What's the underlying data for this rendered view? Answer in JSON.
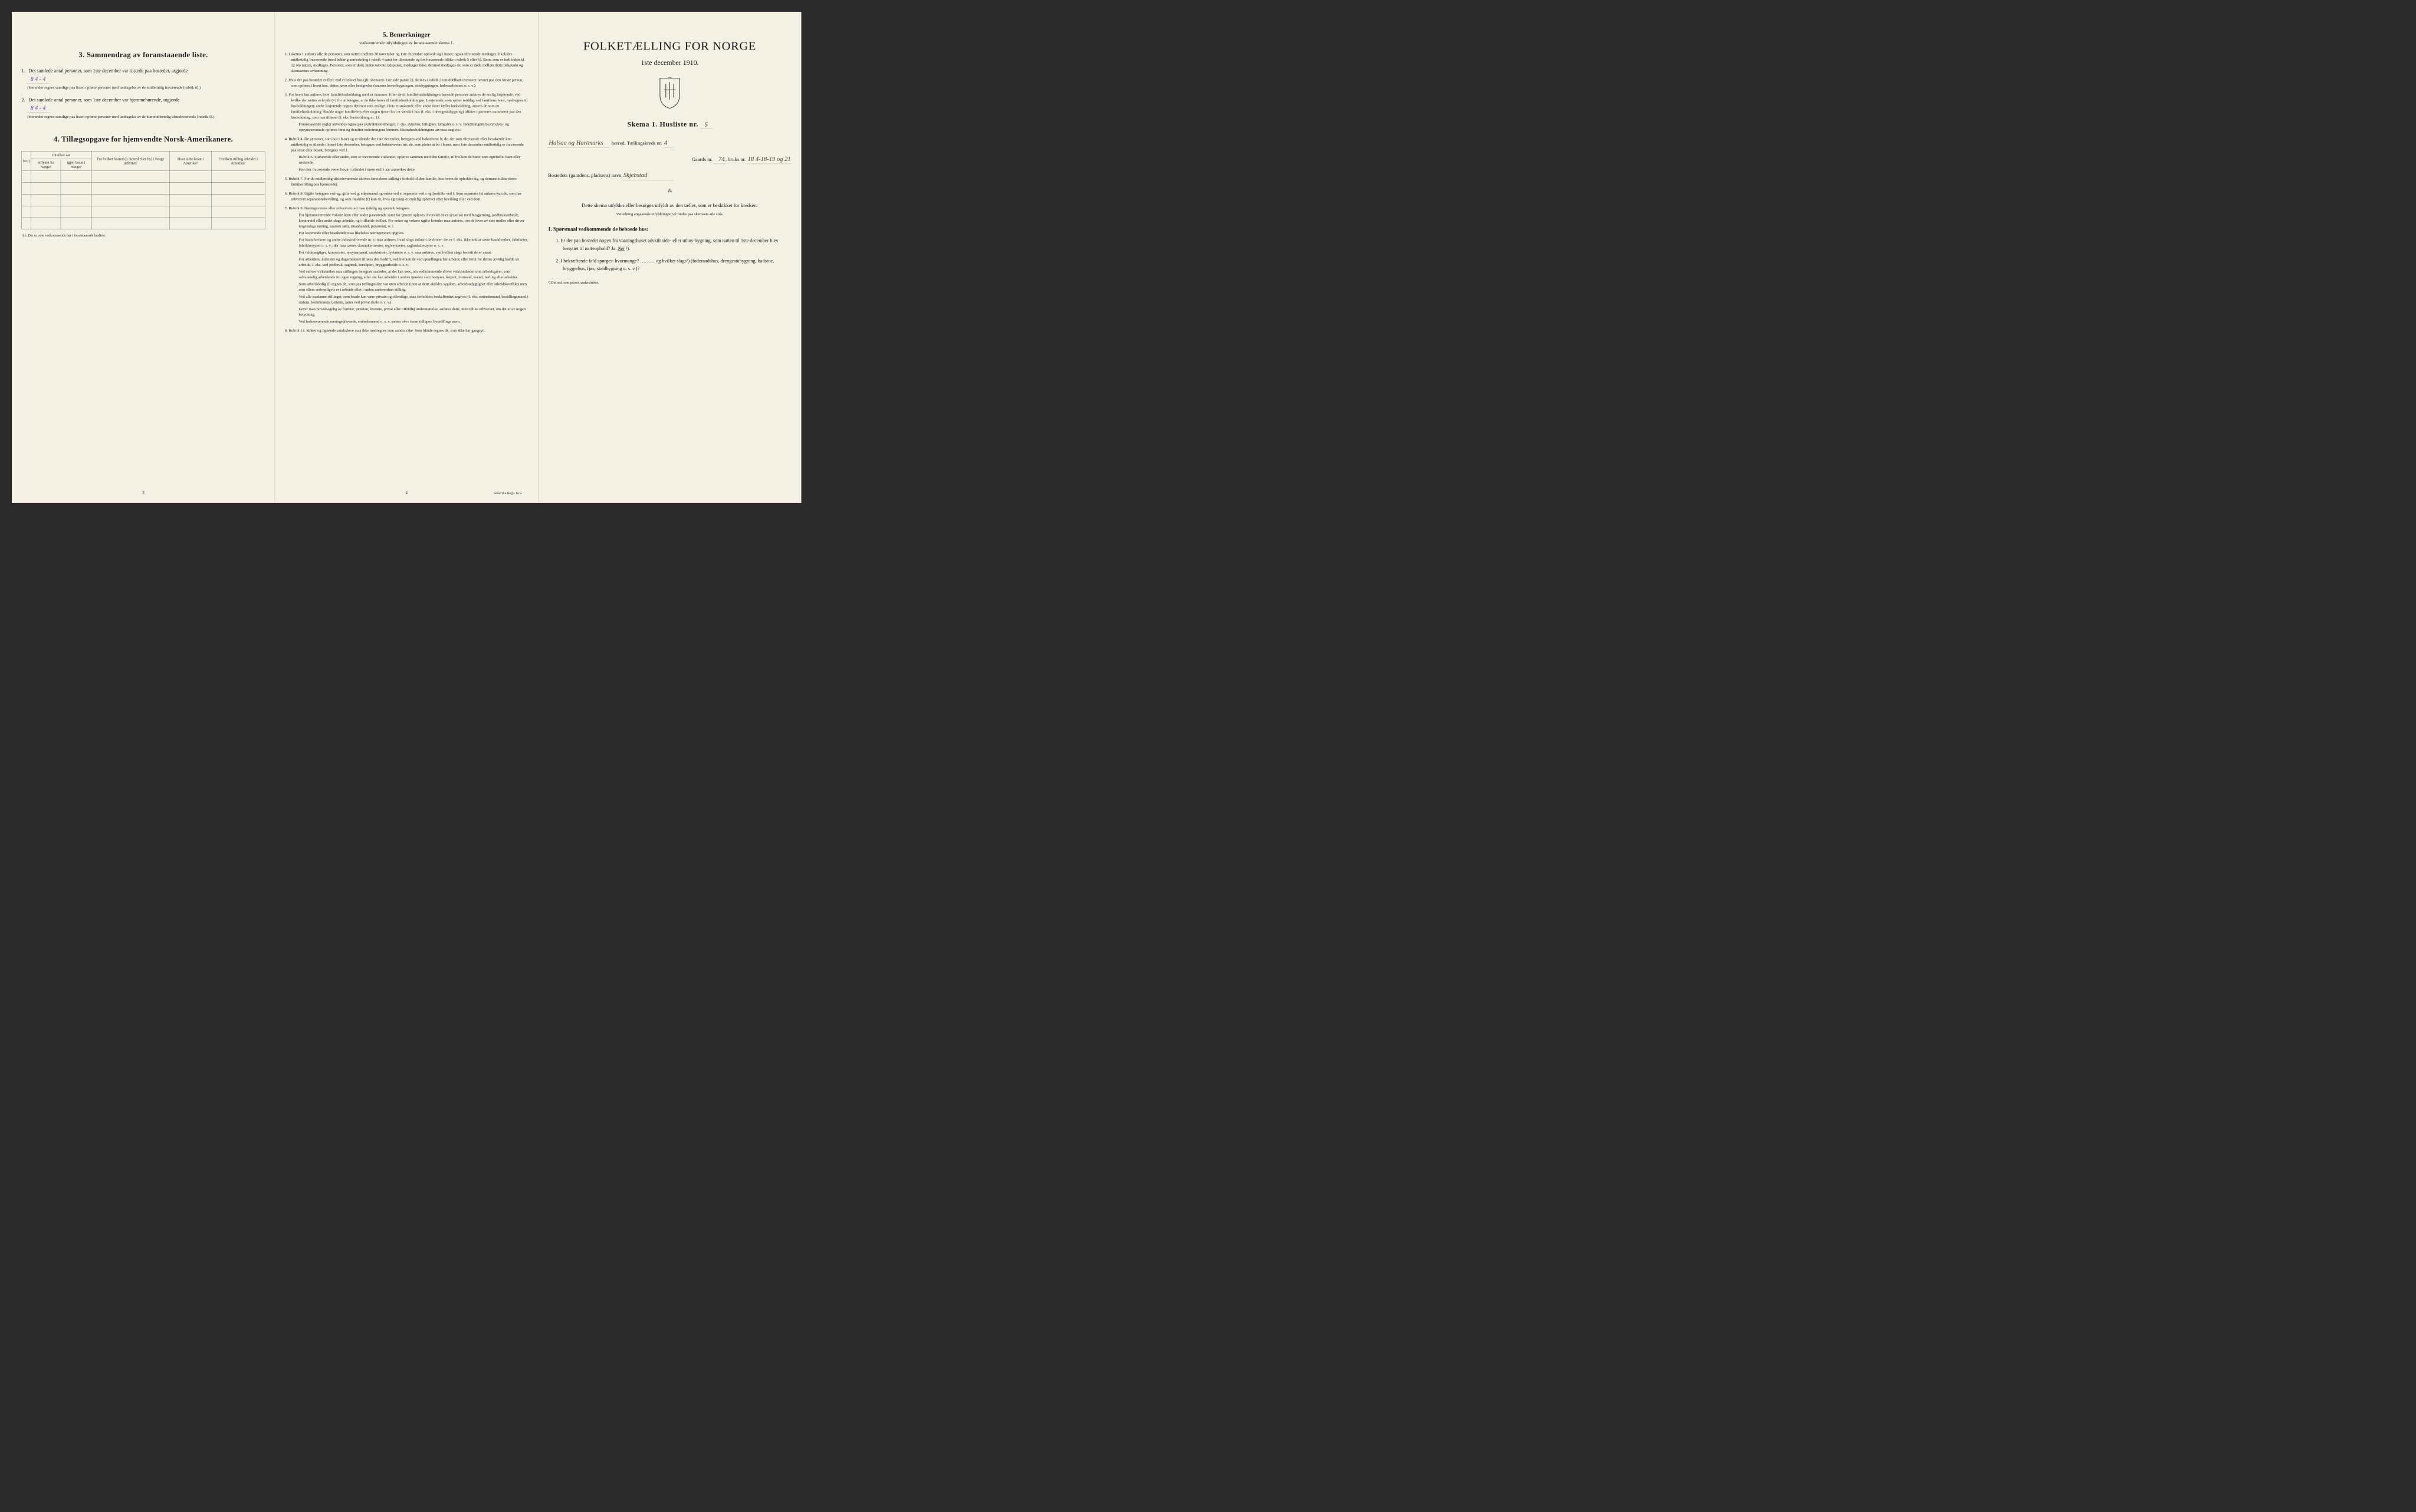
{
  "left": {
    "section3_title": "3.  Sammendrag av foranstaaende liste.",
    "item1_text": "Det samlede antal personer, som 1ste december var tilstede paa bostedet, utgjorde",
    "item1_value": "8    4 - 4",
    "item1_note": "(Herunder regnes samtlige paa listen opførte personer med undtagelse av de midlertidig fraværende [rubrik 6].)",
    "item2_text": "Det samlede antal personer, som 1ste december var hjemmehørende, utgjorde",
    "item2_value": "8    4 - 4",
    "item2_note": "(Herunder regnes samtlige paa listen opførte personer med undtagelse av de kun midlertidig tilstedeværende [rubrik 5].)",
    "section4_title": "4.  Tillægsopgave for hjemvendte Norsk-Amerikanere.",
    "table": {
      "headers_row1": [
        "Nr.¹)",
        "I hvilket aar",
        "Fra hvilket bosted (ɔ: herred eller by) i Norge utflyttet?",
        "Hvor sidst bosat i Amerika?",
        "I hvilken stilling arbeidet i Amerika?"
      ],
      "headers_sub": [
        "utflyttet fra Norge?",
        "igjen bosat i Norge?"
      ],
      "rows": 5,
      "cols": 6
    },
    "table_footnote": "¹) ɔ: Det nr. som vedkommende har i foranstaaende husliste.",
    "page_num": "3"
  },
  "center": {
    "title": "5.  Bemerkninger",
    "subtitle": "vedkommende utfyldningen av foranstaaende skema 1.",
    "items": [
      {
        "n": "1.",
        "text": "I skema 1 anføres alle de personer, som natten mellem 30 november og 1ste december opholdt sig i huset; ogsaa tilreisende medtages; likeledes midlertidig fraværende (med behørig anmerkning i rubrik 4 samt for tilreisende og for fraværende tillike i rubrik 5 eller 6). Barn, som er født inden kl. 12 om natten, medtages. Personer, som er døde inden nævnte tidspunkt, medtages ikke; derimot medtages de, som er døde mellem dette tidspunkt og skemaernes avhentning."
      },
      {
        "n": "2.",
        "text": "Hvis der paa bostedet er flere end ét beboet hus (jfr. skemaets 1ste side punkt 2), skrives i rubrik 2 umiddelbart ovenover navnet paa den første person, som opføres i hvert hus, dettes navn eller betegnelse (saasom hovedbygningen, sidebygningen, føderaadshuset o. s. v.)."
      },
      {
        "n": "3.",
        "text": "For hvert hus anføres hver familiehusholdning med sit nummer. Efter de til familiehusholdningen hørende personer anføres de enslig losjerende, ved hvilke der sættes et kryds (×) for at betegne, at de ikke hører til familiehusholdningen. Losjerende, som spiser middag ved familiens bord, medregnes til husholdningen; andre losjerende regnes derimot som enslige. Hvis to søskende eller andre fører fælles husholdning, ansees de som en familiehusholdning. Skulde noget familielem eller nogen tjener bo i et særskilt hus (f. eks. i drengestubygning) tilføies i parentes nummeret paa den husholdning, som han tilhører (f. eks. husholdning nr. 1).",
        "extra": "Foranstaaende regler anvendes ogsaa paa ekstrahusholdninger, f. eks. sykehus, fattighus, fængsler o. s. v. Indretningens bestyrelses- og opsynspersonale opføres først og derefter indretningens lemmer. Ekstrahusholdningens art maa angives."
      },
      {
        "n": "4.",
        "text": "Rubrik 4. De personer, som bor i huset og er tilstede der 1ste december, betegnes ved bokstaven: b; de, der som tilreisende eller besøkende kun midlertidig er tilstede i huset 1ste december, betegnes ved bokstaverne: mt; de, som pleier at bo i huset, men 1ste december midlertidig er fraværende paa reise eller besøk, betegnes ved f.",
        "extra": "Rubrik 6. Sjøfarende eller andre, som er fraværende i utlandet, opføres sammen med den familie, til hvilken de hører som egtefælle, barn eller søskende.",
        "extra2": "Har den fraværende været bosat i utlandet i mere end 1 aar anmerkes dette."
      },
      {
        "n": "5.",
        "text": "Rubrik 7. For de midlertidig tilstedeværende skrives først deres stilling i forhold til den familie, hos hvem de opholder sig, og dernæst tillike deres familiestilling paa hjemstedet."
      },
      {
        "n": "6.",
        "text": "Rubrik 8. Ugifte betegnes ved ug, gifte ved g, enkemænd og enker ved e, separerte ved s og fraskilte ved f. Som separerte (s) anføres kun de, som har erhvervet separationsbevilling, og som fraskilte (f) kun de, hvis egteskap er endelig ophævet efter bevilling eller ved dom."
      },
      {
        "n": "7.",
        "text": "Rubrik 9. Næringsveiens eller erhvervets art maa tydelig og specielt betegnes.",
        "paras": [
          "For hjemmeværende voksne barn eller andre paarørende samt for tjenere oplyses, hvorvidt de er sysselsat med husgjerning, jordbruksarbeide, kreaturstel eller andet slags arbeide, og i tilfælde hvilket. For enker og voksne ugifte kvinder maa anføres, om de lever av sine midler eller driver nogenslags næring, saasom søm, smaahandel, pensionat, o. l.",
          "For losjerende eller besøkende maa likeledes næringsveien opgives.",
          "For haandverkere og andre industridrivende m. v. maa anføres, hvad slags industri de driver; det er f. eks. ikke nok at sætte haandverker, fabrikeier, fabrikbestyrer o. s. v.; der maa sættes skomakermester, teglverkseier, sagbruksbestyrer o. s. v.",
          "For fuldmægtiger, kontorister, opsynsmænd, maskinister, fyrbøtere o. s. v. maa anføres, ved hvilket slags bedrift de er ansat.",
          "For arbeidere, inderster og dagarbeidere tilføies den bedrift, ved hvilken de ved optællingen har arbeide eller forut for denne jevnlig hadde sit arbeide, f. eks. ved jordbruk, sagbruk, træsliperi, bryggearbeide o. s. v.",
          "Ved enhver virksomhet maa stillingen betegnes saaledes, at det kan sees, om vedkommende driver virksomheten som arbeidsgiver, som selvstændig arbeidende for egen regning, eller om han arbeider i andres tjeneste som bestyrer, betjent, formand, svend, lærling eller arbeider.",
          "Som arbeidsledig (l) regnes de, som paa tællingstiden var uten arbeide (uten at dette skyldes sygdom, arbeidsudygtighet eller arbeidskonflikt) men som ellers sedvanligvis er i arbeide eller i anden underordnet stilling.",
          "Ved alle saadanne stillinger, som baade kan være private og offentlige, maa forholdets beskaffenhet angives (f. eks. embedsmand, bestillingsmand i statens, kommunens tjeneste, lærer ved privat skole o. s. v.).",
          "Lever man hovedsagelig av formue, pension, livrente, privat eller offentlig understøttelse, anføres dette, men tillike erhvervet, om det er av nogen betydning.",
          "Ved forhenværende næringsdrivende, embedsmænd o. s. v. sættes «fv» foran tidligere livsstillings navn."
        ]
      },
      {
        "n": "8.",
        "text": "Rubrik 14. Sinker og lignende aandssløve maa ikke medregnes som aandssvake. Som blinde regnes de, som ikke har gangsyn."
      }
    ],
    "page_num": "4",
    "printer": "Steen'ske Bogtr. Kr.a."
  },
  "right": {
    "main_title": "FOLKETÆLLING FOR NORGE",
    "date_line": "1ste december 1910.",
    "skema_label": "Skema 1.   Husliste nr.",
    "husliste_nr": "5",
    "herred_value": "Halsaa og Hartmarks",
    "herred_label": "herred.  Tællingskreds nr.",
    "kreds_nr": "4",
    "gaards_label": "Gaards nr.",
    "gaards_nr": "74",
    "bruks_label": "bruks nr.",
    "bruks_nr": "18  4-18-19 og 21",
    "bosted_label": "Bostedets (gaardens, pladsens) navn",
    "bosted_value": "Skjebstad",
    "instruction": "Dette skema utfyldes eller besørges utfyldt av den tæller, som er beskikket for kredsen.",
    "instruction_sub": "Veiledning angaaende utfyldningen vil findes paa skemaets 4de side.",
    "q_heading": "1.  Spørsmaal vedkommende de beboede hus:",
    "q1": "1.   Er der paa bostedet nogen fra vaaningshuset adskilt side- eller uthus-bygning, som natten til 1ste december blev benyttet til natteophold?   Ja.   ",
    "q1_answer": "Nei",
    "q1_sup": " ¹).",
    "q2": "2.   I bekræftende fald spørges: hvormange? ……… og hvilket slags¹) (føderaadshus, drengestubygning, badstue, bryggerhus, fjøs, staldbygning o. s. v.)?",
    "footnote": "¹) Det ord, som passer, understrekes."
  },
  "colors": {
    "paper": "#f4f0e4",
    "ink": "#1a1a1a",
    "handwriting": "#5a3fa0",
    "handwriting2": "#4a3b28",
    "border": "#333333"
  }
}
